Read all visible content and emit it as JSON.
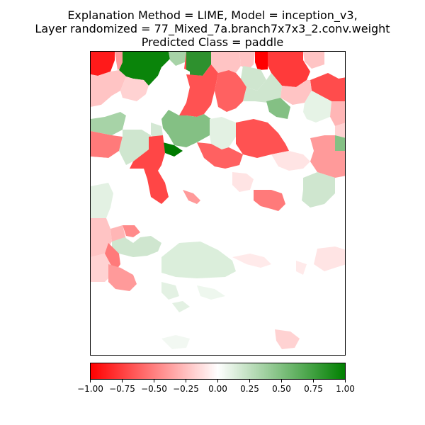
{
  "title": {
    "line1": "Explanation Method = LIME, Model = inception_v3,",
    "line2": "Layer randomized = 77_Mixed_7a.branch7x7x3_2.conv.weight",
    "line3": "Predicted Class = paddle"
  },
  "chart_data": {
    "type": "heatmap",
    "title": "Explanation Method = LIME, Model = inception_v3, Layer randomized = 77_Mixed_7a.branch7x7x3_2.conv.weight, Predicted Class = paddle",
    "xlabel": "",
    "ylabel": "",
    "colorbar": {
      "range": [
        -1.0,
        1.0
      ],
      "colors": [
        "#ff0000",
        "#ffffff",
        "#008000"
      ],
      "ticks": [
        -1.0,
        -0.75,
        -0.5,
        -0.25,
        0.0,
        0.25,
        0.5,
        0.75,
        1.0
      ],
      "tick_labels": [
        "−1.00",
        "−0.75",
        "−0.50",
        "−0.25",
        "0.00",
        "0.25",
        "0.50",
        "0.75",
        "1.00"
      ]
    },
    "axes_ticks_visible": false
  }
}
